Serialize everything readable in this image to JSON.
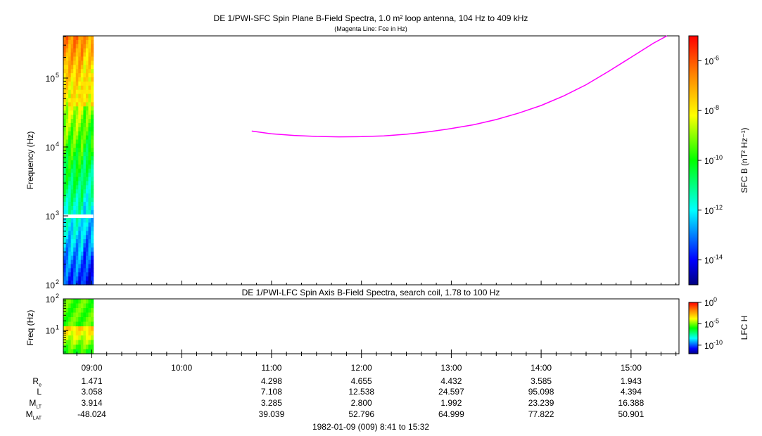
{
  "chart_data": [
    {
      "type": "heatmap",
      "title": "DE 1/PWI-SFC  Spin Plane B-Field Spectra, 1.0 m² loop antenna, 104 Hz to 409 kHz",
      "subtitle": "(Magenta Line: Fce in Hz)",
      "ylabel": "Frequency (Hz)",
      "y_scale": "log",
      "ylim": [
        100,
        409000
      ],
      "y_ticks": [
        "10",
        "10",
        "10",
        "10"
      ],
      "y_tick_exponents": [
        "2",
        "3",
        "4",
        "5"
      ],
      "colorbar": {
        "label": "SFC B (nT² Hz⁻¹)",
        "scale": "log",
        "range": [
          1e-15,
          1e-05
        ],
        "tick_bases": [
          "10",
          "10",
          "10",
          "10",
          "10"
        ],
        "tick_exponents": [
          "-6",
          "-8",
          "-10",
          "-12",
          "-14"
        ]
      },
      "data_time_range": [
        "08:41",
        "09:01"
      ],
      "fce_line": {
        "color": "#ff00ff",
        "x_hours": [
          10.78,
          11.0,
          11.25,
          11.5,
          11.75,
          12.0,
          12.25,
          12.5,
          12.75,
          13.0,
          13.25,
          13.5,
          13.75,
          14.0,
          14.25,
          14.5,
          14.75,
          15.0,
          15.25,
          15.4
        ],
        "y_hz": [
          17000,
          15500,
          14700,
          14200,
          14000,
          14100,
          14500,
          15300,
          16600,
          18500,
          21000,
          25000,
          31000,
          40000,
          55000,
          80000,
          125000,
          200000,
          320000,
          409000
        ]
      }
    },
    {
      "type": "heatmap",
      "title": "DE 1/PWI-LFC  Spin Axis B-Field Spectra, search coil, 1.78 to 100 Hz",
      "ylabel": "Freq (Hz)",
      "y_scale": "log",
      "ylim": [
        1.78,
        100
      ],
      "y_ticks": [
        "10",
        "10"
      ],
      "y_tick_exponents": [
        "2",
        "1"
      ],
      "colorbar": {
        "label": "LFC H",
        "scale": "log",
        "range": [
          1e-12,
          1
        ],
        "tick_bases": [
          "10",
          "10",
          "10"
        ],
        "tick_exponents": [
          "0",
          "-5",
          "-10"
        ]
      },
      "data_time_range": [
        "08:41",
        "09:01"
      ]
    }
  ],
  "x_axis": {
    "start_hour": 8.6833,
    "end_hour": 15.5333,
    "tick_labels": [
      "09:00",
      "10:00",
      "11:00",
      "12:00",
      "13:00",
      "14:00",
      "15:00"
    ]
  },
  "ephemeris": {
    "rows": [
      {
        "label": "R",
        "sub": "e",
        "values": [
          "1.471",
          "",
          "4.298",
          "4.655",
          "4.432",
          "3.585",
          "1.943"
        ]
      },
      {
        "label": "L",
        "sub": "",
        "values": [
          "3.058",
          "",
          "7.108",
          "12.538",
          "24.597",
          "95.098",
          "4.394"
        ]
      },
      {
        "label": "M",
        "sub": "LT",
        "values": [
          "3.914",
          "",
          "3.285",
          "2.800",
          "1.992",
          "23.239",
          "16.388"
        ]
      },
      {
        "label": "M",
        "sub": "LAT",
        "values": [
          "-48.024",
          "",
          "39.039",
          "52.796",
          "64.999",
          "77.822",
          "50.901"
        ]
      }
    ]
  },
  "footer": "1982-01-09 (009) 8:41 to 15:32"
}
